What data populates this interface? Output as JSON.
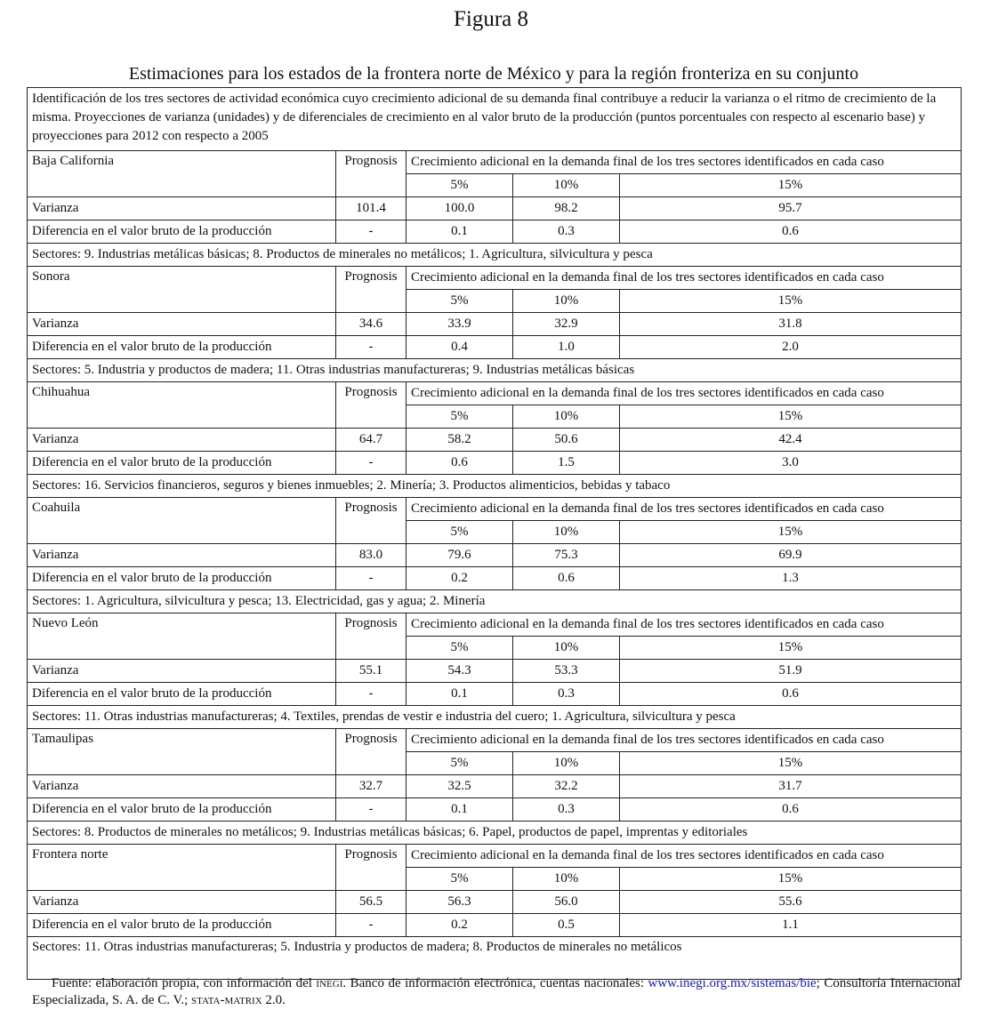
{
  "figure_label": "Figura 8",
  "title": "Estimaciones para los estados de la frontera norte de México y para la región fronteriza en su conjunto",
  "intro": "Identificación de los tres sectores de actividad económica cuyo crecimiento adicional de su demanda final contribuye a reducir la varianza o el ritmo de crecimiento de la misma. Proyecciones de varianza (unidades) y de diferenciales de crecimiento en al valor bruto de la producción (puntos porcentuales con respecto al escenario base) y proyecciones para 2012 con respecto a 2005",
  "labels": {
    "prognosis": "Prognosis",
    "growth_header": "Crecimiento adicional en la demanda final de los tres sectores identificados en cada caso",
    "pct": [
      "5%",
      "10%",
      "15%"
    ],
    "varianza": "Varianza",
    "diferencia": "Diferencia en el valor bruto de la producción"
  },
  "sections": [
    {
      "name": "Baja California",
      "varianza": [
        "101.4",
        "100.0",
        "98.2",
        "95.7"
      ],
      "diferencia": [
        "-",
        "0.1",
        "0.3",
        "0.6"
      ],
      "sectores": "Sectores: 9. Industrias metálicas básicas; 8. Productos de minerales no metálicos; 1. Agricultura, silvicultura y pesca"
    },
    {
      "name": "Sonora",
      "varianza": [
        "34.6",
        "33.9",
        "32.9",
        "31.8"
      ],
      "diferencia": [
        "-",
        "0.4",
        "1.0",
        "2.0"
      ],
      "sectores": "Sectores: 5. Industria y productos de madera; 11. Otras industrias manufactureras; 9. Industrias metálicas básicas"
    },
    {
      "name": "Chihuahua",
      "varianza": [
        "64.7",
        "58.2",
        "50.6",
        "42.4"
      ],
      "diferencia": [
        "-",
        "0.6",
        "1.5",
        "3.0"
      ],
      "sectores": "Sectores: 16. Servicios financieros, seguros y bienes inmuebles; 2. Minería; 3. Productos alimenticios, bebidas y tabaco"
    },
    {
      "name": "Coahuila",
      "varianza": [
        "83.0",
        "79.6",
        "75.3",
        "69.9"
      ],
      "diferencia": [
        "-",
        "0.2",
        "0.6",
        "1.3"
      ],
      "sectores": "Sectores: 1. Agricultura, silvicultura y pesca; 13. Electricidad, gas y agua; 2. Minería"
    },
    {
      "name": "Nuevo León",
      "varianza": [
        "55.1",
        "54.3",
        "53.3",
        "51.9"
      ],
      "diferencia": [
        "-",
        "0.1",
        "0.3",
        "0.6"
      ],
      "sectores": "Sectores: 11. Otras industrias manufactureras; 4. Textiles, prendas de vestir e industria del cuero; 1. Agricultura, silvicultura y pesca"
    },
    {
      "name": "Tamaulipas",
      "varianza": [
        "32.7",
        "32.5",
        "32.2",
        "31.7"
      ],
      "diferencia": [
        "-",
        "0.1",
        "0.3",
        "0.6"
      ],
      "sectores": "Sectores: 8. Productos de minerales no metálicos; 9. Industrias metálicas básicas; 6. Papel, productos de papel, imprentas y editoriales"
    },
    {
      "name": "Frontera norte",
      "varianza": [
        "56.5",
        "56.3",
        "56.0",
        "55.6"
      ],
      "diferencia": [
        "-",
        "0.2",
        "0.5",
        "1.1"
      ],
      "sectores": "Sectores: 11. Otras industrias manufactureras; 5. Industria y productos de madera; 8. Productos de minerales no metálicos"
    }
  ],
  "source": {
    "prefix": "Fuente: elaboración propia, con información del ",
    "inegi": "inegi",
    "middle": ". Banco de información electrónica, cuentas nacionales: ",
    "link": "www.inegi.org.mx/sistemas/bie",
    "after_link": "; Consultoría Internacional Especializada, S. A. de C. V.; ",
    "stata": "stata-matrix",
    "suffix": " 2.0.",
    "link_color": "#1a1aa8"
  }
}
